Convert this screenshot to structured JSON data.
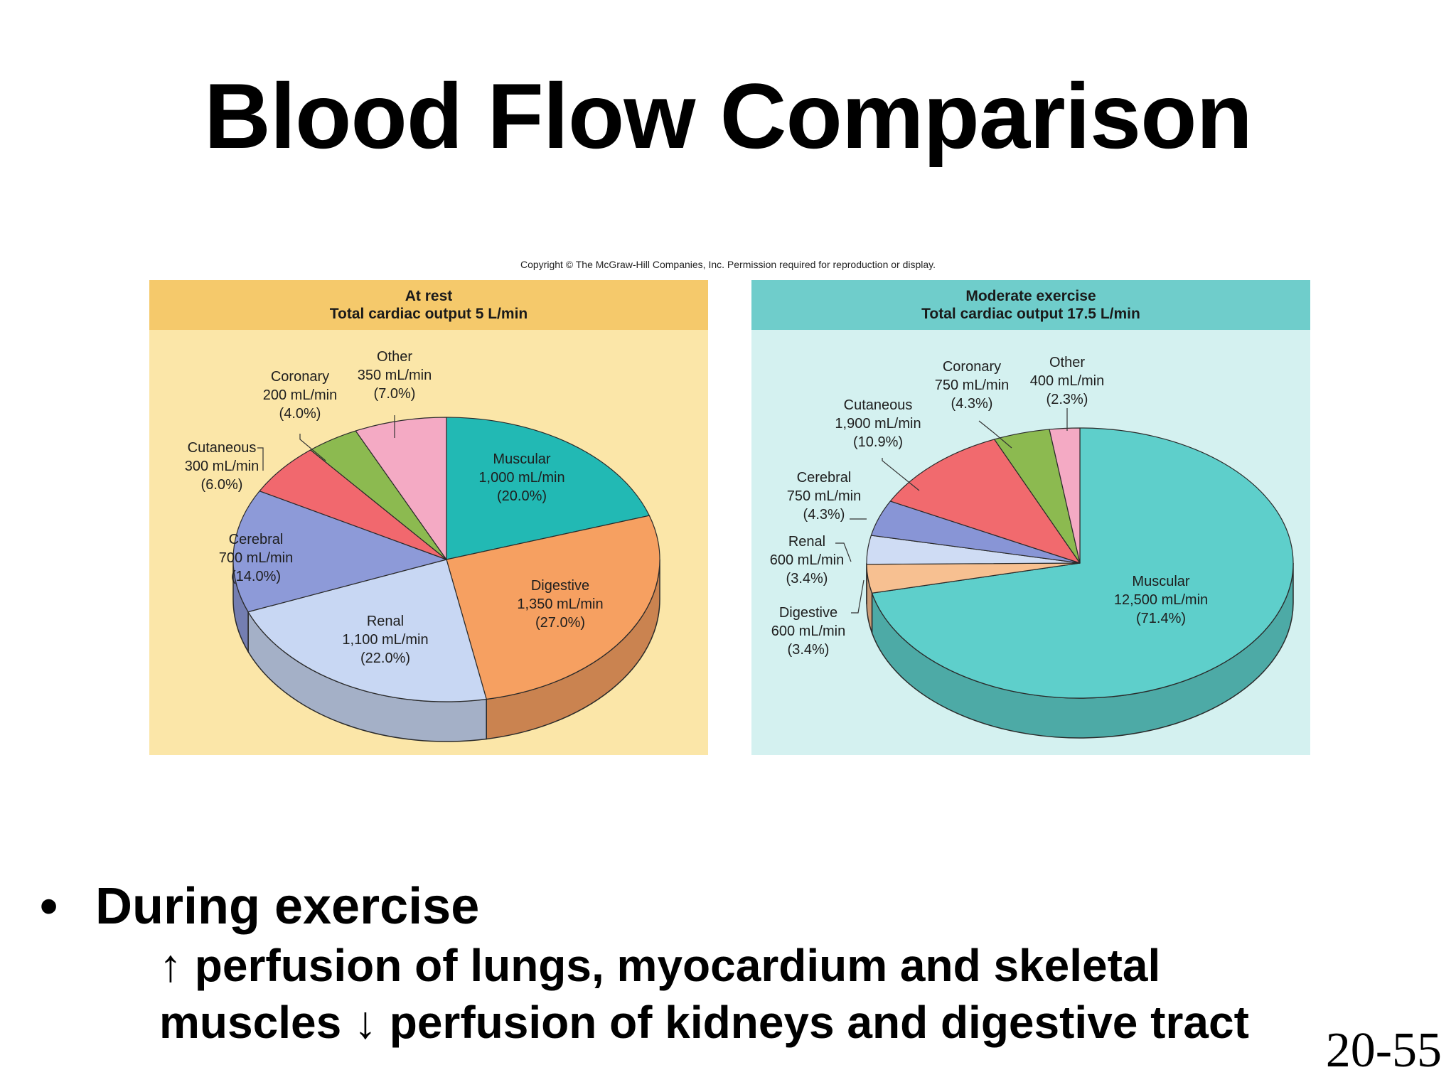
{
  "title": "Blood Flow Comparison",
  "copyright": "Copyright © The McGraw-Hill Companies, Inc. Permission required for reproduction or display.",
  "bullet": "During exercise",
  "sub_lines": [
    "↑ perfusion of lungs, myocardium and skeletal",
    "muscles ↓ perfusion of kidneys and digestive tract"
  ],
  "page_number": "20-55",
  "colors": {
    "rest_panel_bg": "#fbe6a8",
    "rest_header_bg": "#f5c96b",
    "exercise_panel_bg": "#d4f1f0",
    "exercise_header_bg": "#6fcdcb"
  },
  "chart_data": [
    {
      "type": "pie",
      "title_lines": [
        "At rest",
        "Total cardiac output 5 L/min"
      ],
      "unit": "mL/min",
      "slices": [
        {
          "name": "Muscular",
          "value": 1000,
          "label_value": "1,000 mL/min",
          "percent": "(20.0%)",
          "color": "#22b9b4"
        },
        {
          "name": "Digestive",
          "value": 1350,
          "label_value": "1,350 mL/min",
          "percent": "(27.0%)",
          "color": "#f6a061"
        },
        {
          "name": "Renal",
          "value": 1100,
          "label_value": "1,100 mL/min",
          "percent": "(22.0%)",
          "color": "#c8d7f3"
        },
        {
          "name": "Cerebral",
          "value": 700,
          "label_value": "700 mL/min",
          "percent": "(14.0%)",
          "color": "#8d9ad8"
        },
        {
          "name": "Cutaneous",
          "value": 300,
          "label_value": "300 mL/min",
          "percent": "(6.0%)",
          "color": "#f1686e"
        },
        {
          "name": "Coronary",
          "value": 200,
          "label_value": "200 mL/min",
          "percent": "(4.0%)",
          "color": "#8cba50"
        },
        {
          "name": "Other",
          "value": 350,
          "label_value": "350 mL/min",
          "percent": "(7.0%)",
          "color": "#f4aac4"
        }
      ]
    },
    {
      "type": "pie",
      "title_lines": [
        "Moderate exercise",
        "Total cardiac output 17.5 L/min"
      ],
      "unit": "mL/min",
      "slices": [
        {
          "name": "Muscular",
          "value": 12500,
          "label_value": "12,500 mL/min",
          "percent": "(71.4%)",
          "color": "#5ecfcb"
        },
        {
          "name": "Digestive",
          "value": 600,
          "label_value": "600 mL/min",
          "percent": "(3.4%)",
          "color": "#f7c091"
        },
        {
          "name": "Renal",
          "value": 600,
          "label_value": "600 mL/min",
          "percent": "(3.4%)",
          "color": "#cfdcf4"
        },
        {
          "name": "Cerebral",
          "value": 750,
          "label_value": "750 mL/min",
          "percent": "(4.3%)",
          "color": "#8895d6"
        },
        {
          "name": "Cutaneous",
          "value": 1900,
          "label_value": "1,900 mL/min",
          "percent": "(10.9%)",
          "color": "#f16a6e"
        },
        {
          "name": "Coronary",
          "value": 750,
          "label_value": "750 mL/min",
          "percent": "(4.3%)",
          "color": "#8cba50"
        },
        {
          "name": "Other",
          "value": 400,
          "label_value": "400 mL/min",
          "percent": "(2.3%)",
          "color": "#f4aac4"
        }
      ]
    }
  ]
}
